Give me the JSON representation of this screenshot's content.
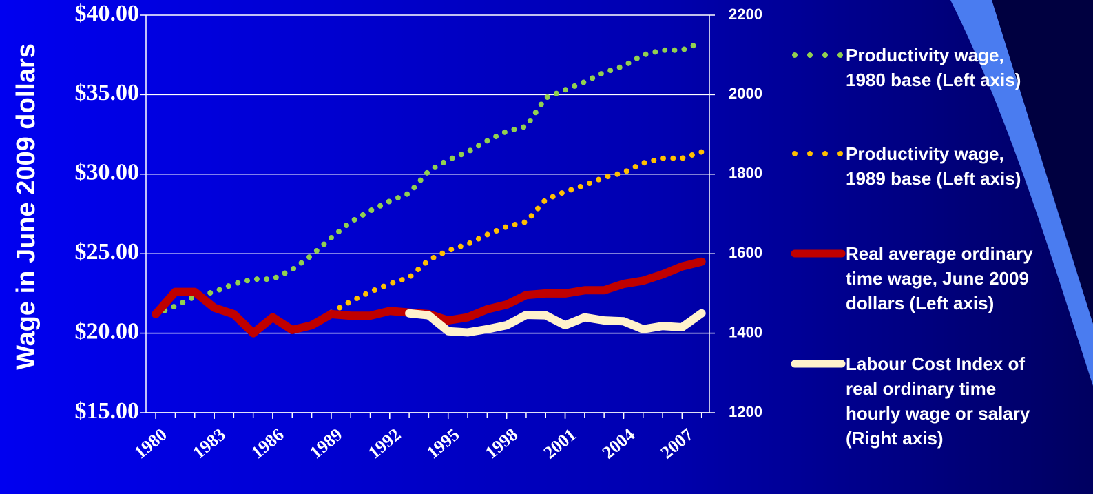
{
  "chart_data": {
    "type": "line",
    "y_axis_label": "Wage in June 2009 dollars",
    "x": [
      1980,
      1981,
      1982,
      1983,
      1984,
      1985,
      1986,
      1987,
      1988,
      1989,
      1990,
      1991,
      1992,
      1993,
      1994,
      1995,
      1996,
      1997,
      1998,
      1999,
      2000,
      2001,
      2002,
      2003,
      2004,
      2005,
      2006,
      2007,
      2008
    ],
    "xlim": [
      1979.5,
      2008.4
    ],
    "xticks": [
      1980,
      1983,
      1986,
      1989,
      1992,
      1995,
      1998,
      2001,
      2004,
      2007
    ],
    "ylim": [
      15,
      40
    ],
    "yticks": [
      {
        "value": 15,
        "label": "$15.00"
      },
      {
        "value": 20,
        "label": "$20.00"
      },
      {
        "value": 25,
        "label": "$25.00"
      },
      {
        "value": 30,
        "label": "$30.00"
      },
      {
        "value": 35,
        "label": "$35.00"
      },
      {
        "value": 40,
        "label": "$40.00"
      }
    ],
    "y2lim": [
      1200,
      2200
    ],
    "y2ticks": [
      1200,
      1400,
      1600,
      1800,
      2000,
      2200
    ],
    "grid": true,
    "legend": "right",
    "series": [
      {
        "name": "Productivity wage,\n1980  base (Left axis)",
        "color": "#92d050",
        "style": "dotted",
        "values": [
          21.2,
          21.7,
          22.3,
          22.6,
          23.1,
          23.4,
          23.4,
          24.0,
          24.9,
          26.0,
          27.0,
          27.7,
          28.3,
          28.8,
          30.2,
          30.9,
          31.4,
          32.1,
          32.7,
          33.0,
          34.8,
          35.3,
          35.8,
          36.4,
          36.8,
          37.5,
          37.8,
          37.8,
          38.3
        ]
      },
      {
        "name": "Productivity wage,\n1989  base (Left axis)",
        "color": "#ffc000",
        "style": "dotted",
        "values": [
          null,
          null,
          null,
          null,
          null,
          null,
          null,
          null,
          null,
          21.3,
          22.0,
          22.6,
          23.1,
          23.5,
          24.6,
          25.2,
          25.6,
          26.2,
          26.7,
          27.0,
          28.4,
          28.9,
          29.3,
          29.8,
          30.1,
          30.7,
          31.0,
          31.0,
          31.4
        ]
      },
      {
        "name": "Real average ordinary\ntime wage, June 2009\ndollars (Left axis)",
        "color": "#c00000",
        "style": "solid",
        "values": [
          21.2,
          22.6,
          22.6,
          21.6,
          21.2,
          20.0,
          21.0,
          20.2,
          20.5,
          21.2,
          21.1,
          21.1,
          21.4,
          21.3,
          21.2,
          20.8,
          21.0,
          21.5,
          21.8,
          22.4,
          22.5,
          22.5,
          22.7,
          22.7,
          23.1,
          23.3,
          23.7,
          24.2,
          24.5
        ]
      },
      {
        "name": "Labour Cost Index of\nreal ordinary time\nhourly wage or salary\n(Right axis)",
        "color": "#fff2cc",
        "style": "solid",
        "axis": "y2",
        "values": [
          null,
          null,
          null,
          null,
          null,
          null,
          null,
          null,
          null,
          null,
          null,
          null,
          null,
          1450,
          1445,
          1405,
          1402,
          1410,
          1420,
          1446,
          1445,
          1420,
          1440,
          1432,
          1430,
          1410,
          1418,
          1415,
          1450
        ]
      }
    ]
  }
}
